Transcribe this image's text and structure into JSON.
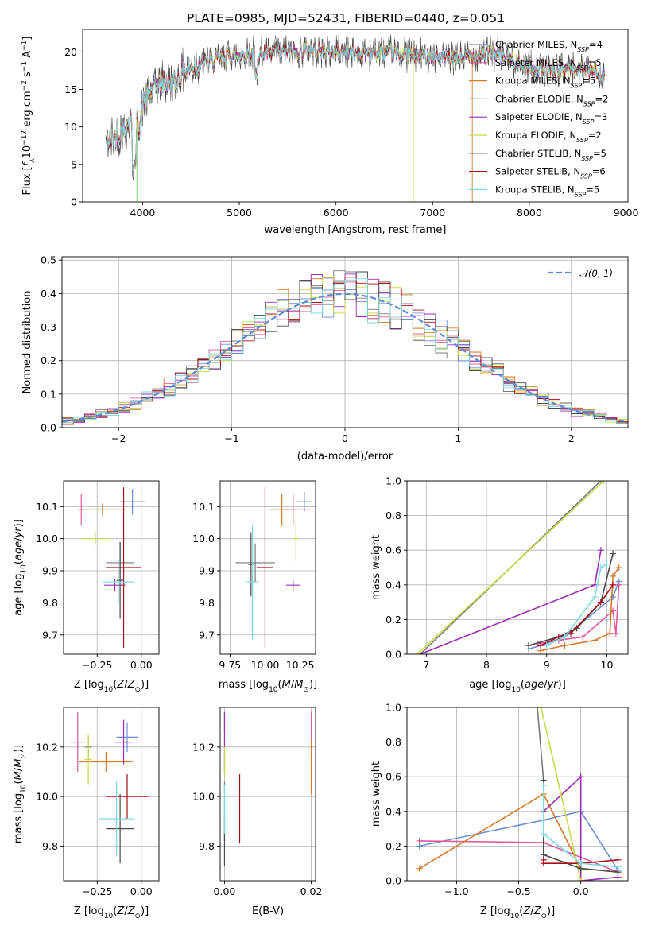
{
  "title": "PLATE=0985, MJD=52431, FIBERID=0440, z=0.051",
  "palette": [
    "#6b8fd6",
    "#e05b9a",
    "#d47a2a",
    "#7a7a7a",
    "#9b2db5",
    "#c8d94a",
    "#4a4a4a",
    "#a50f15",
    "#80d8e0"
  ],
  "models": [
    {
      "name": "Chabrier MILES",
      "nssp": "4"
    },
    {
      "name": "Salpeter MILES",
      "nssp": "5"
    },
    {
      "name": "Kroupa MILES",
      "nssp": "5"
    },
    {
      "name": "Chabrier ELODIE",
      "nssp": "2"
    },
    {
      "name": "Salpeter ELODIE",
      "nssp": "3"
    },
    {
      "name": "Kroupa ELODIE",
      "nssp": "2"
    },
    {
      "name": "Chabrier STELIB",
      "nssp": "5"
    },
    {
      "name": "Salpeter STELIB",
      "nssp": "6"
    },
    {
      "name": "Kroupa STELIB",
      "nssp": "5"
    }
  ],
  "chart_data": [
    {
      "type": "line",
      "xlabel": "wavelength [Angstrom, rest frame]",
      "ylabel": "Flux [f_λ 10^-17 erg cm^-2 s^-1 A^-1]",
      "xlim": [
        3380,
        9020
      ],
      "ylim": [
        0,
        23
      ],
      "xticks": [
        4000,
        5000,
        6000,
        7000,
        8000,
        9000
      ],
      "yticks": [
        0,
        5,
        10,
        15,
        20
      ],
      "spectrum_shape": {
        "x": [
          3620,
          3700,
          3800,
          3900,
          3950,
          4000,
          4100,
          4200,
          4300,
          4400,
          4500,
          4700,
          4900,
          5100,
          5300,
          5500,
          5700,
          6000,
          6300,
          6600,
          6800,
          7000,
          7200,
          7400,
          7600,
          7800,
          8000,
          8200,
          8400,
          8600,
          8780
        ],
        "y": [
          8,
          8.5,
          9.5,
          11,
          9.5,
          13,
          15,
          16,
          15.5,
          17,
          18,
          18.8,
          19.5,
          19.8,
          19.8,
          20,
          20.2,
          20,
          19.8,
          20,
          19.5,
          19.5,
          19,
          19.5,
          20,
          19,
          18,
          17.5,
          17.8,
          17.5,
          17
        ]
      },
      "grid": false,
      "legend_position": "upper right"
    },
    {
      "type": "histogram",
      "xlabel": "(data-model)/error",
      "ylabel": "Normed distribution",
      "xlim": [
        -2.5,
        2.5
      ],
      "ylim": [
        0,
        0.51
      ],
      "xticks": [
        -2,
        -1,
        0,
        1,
        2
      ],
      "yticks": [
        0.0,
        0.1,
        0.2,
        0.3,
        0.4,
        0.5
      ],
      "bin_width": 0.1,
      "reference_curve": "𝒩(0, 1)",
      "grid": true,
      "legend_position": "upper right"
    },
    {
      "type": "scatter",
      "xlabel": "Z [log10(Z/Z⊙)]",
      "ylabel": "age [log10(age/yr)]",
      "xlim": [
        -0.44,
        0.1
      ],
      "ylim": [
        9.64,
        10.18
      ],
      "xticks": [
        -0.25,
        0.0
      ],
      "yticks": [
        9.7,
        9.8,
        9.9,
        10.0,
        10.1
      ],
      "points": [
        {
          "x": -0.05,
          "y": 10.115,
          "xerr": 0.07,
          "yerr": 0.04
        },
        {
          "x": -0.34,
          "y": 10.09,
          "xerr": 0.02,
          "yerr": 0.05
        },
        {
          "x": -0.22,
          "y": 10.09,
          "xerr": 0.14,
          "yerr": 0.02
        },
        {
          "x": -0.12,
          "y": 9.925,
          "xerr": 0.08,
          "yerr": 0.06
        },
        {
          "x": -0.15,
          "y": 9.855,
          "xerr": 0.06,
          "yerr": 0.02
        },
        {
          "x": -0.26,
          "y": 10.0,
          "xerr": 0.08,
          "yerr": 0.02
        },
        {
          "x": -0.12,
          "y": 9.87,
          "xerr": 0.02,
          "yerr": 0.12
        },
        {
          "x": -0.1,
          "y": 9.91,
          "xerr": 0.1,
          "yerr": 0.25
        },
        {
          "x": -0.13,
          "y": 9.865,
          "xerr": 0.09,
          "yerr": 0.07
        }
      ],
      "grid": true
    },
    {
      "type": "scatter",
      "xlabel": "mass [log10(M/M⊙)]",
      "ylabel": "",
      "xlim": [
        9.68,
        10.36
      ],
      "ylim": [
        9.64,
        10.18
      ],
      "xticks": [
        9.75,
        10.0,
        10.25
      ],
      "yticks": [
        9.7,
        9.8,
        9.9,
        10.0,
        10.1
      ],
      "points": [
        {
          "x": 10.28,
          "y": 10.115,
          "xerr": 0.05,
          "yerr": 0.03
        },
        {
          "x": 10.2,
          "y": 10.09,
          "xerr": 0.12,
          "yerr": 0.05
        },
        {
          "x": 10.12,
          "y": 10.09,
          "xerr": 0.1,
          "yerr": 0.05
        },
        {
          "x": 9.93,
          "y": 9.925,
          "xerr": 0.14,
          "yerr": 0.06
        },
        {
          "x": 10.2,
          "y": 9.855,
          "xerr": 0.05,
          "yerr": 0.02
        },
        {
          "x": 10.22,
          "y": 10.0,
          "xerr": 0.02,
          "yerr": 0.07
        },
        {
          "x": 9.9,
          "y": 9.92,
          "xerr": 0.02,
          "yerr": 0.1
        },
        {
          "x": 10.0,
          "y": 9.91,
          "xerr": 0.06,
          "yerr": 0.25
        },
        {
          "x": 9.91,
          "y": 9.865,
          "xerr": 0.04,
          "yerr": 0.18
        }
      ],
      "grid": true
    },
    {
      "type": "line",
      "xlabel": "age [log10(age/yr)]",
      "ylabel": "mass weight",
      "xlim": [
        6.68,
        10.35
      ],
      "ylim": [
        0,
        1
      ],
      "xticks": [
        7,
        8,
        9,
        10
      ],
      "yticks": [
        0.0,
        0.2,
        0.4,
        0.6,
        0.8,
        1.0
      ],
      "series": [
        {
          "x": [
            8.7,
            8.9,
            9.3,
            10.1,
            10.2
          ],
          "y": [
            0.03,
            0.05,
            0.1,
            0.33,
            0.42
          ]
        },
        {
          "x": [
            8.85,
            9.2,
            9.6,
            10.1,
            10.15,
            10.2
          ],
          "y": [
            0.06,
            0.08,
            0.1,
            0.25,
            0.12,
            0.4
          ]
        },
        {
          "x": [
            8.9,
            9.3,
            9.8,
            10.05,
            10.1,
            10.2
          ],
          "y": [
            0.02,
            0.05,
            0.08,
            0.12,
            0.45,
            0.5
          ]
        },
        {
          "x": [
            6.9,
            9.9
          ],
          "y": [
            0.0,
            1.0
          ]
        },
        {
          "x": [
            6.9,
            9.8,
            9.9
          ],
          "y": [
            0.0,
            0.4,
            0.6
          ]
        },
        {
          "x": [
            6.85,
            9.95
          ],
          "y": [
            0.0,
            1.0
          ]
        },
        {
          "x": [
            8.7,
            9.2,
            9.5,
            9.9,
            10.1
          ],
          "y": [
            0.05,
            0.1,
            0.15,
            0.3,
            0.58
          ]
        },
        {
          "x": [
            8.9,
            9.2,
            9.4,
            9.9,
            10.1
          ],
          "y": [
            0.05,
            0.1,
            0.12,
            0.3,
            0.4
          ]
        },
        {
          "x": [
            9.0,
            9.3,
            9.8,
            9.9,
            10.0
          ],
          "y": [
            0.05,
            0.1,
            0.33,
            0.5,
            0.52
          ]
        }
      ],
      "grid": true
    },
    {
      "type": "scatter",
      "xlabel": "Z [log10(Z/Z⊙)]",
      "ylabel": "mass [log10(M/M⊙)]",
      "xlim": [
        -0.44,
        0.1
      ],
      "ylim": [
        9.66,
        10.36
      ],
      "xticks": [
        -0.25,
        0.0
      ],
      "yticks": [
        9.8,
        10.0,
        10.2
      ],
      "points": [
        {
          "x": -0.08,
          "y": 10.24,
          "xerr": 0.06,
          "yerr": 0.06
        },
        {
          "x": -0.36,
          "y": 10.22,
          "xerr": 0.04,
          "yerr": 0.12
        },
        {
          "x": -0.2,
          "y": 10.14,
          "xerr": 0.15,
          "yerr": 0.04
        },
        {
          "x": -0.3,
          "y": 10.2,
          "xerr": 0.02,
          "yerr": 0.04
        },
        {
          "x": -0.1,
          "y": 10.22,
          "xerr": 0.05,
          "yerr": 0.09
        },
        {
          "x": -0.3,
          "y": 10.15,
          "xerr": 0.02,
          "yerr": 0.1
        },
        {
          "x": -0.12,
          "y": 9.87,
          "xerr": 0.08,
          "yerr": 0.14
        },
        {
          "x": -0.08,
          "y": 10.0,
          "xerr": 0.12,
          "yerr": 0.09
        },
        {
          "x": -0.14,
          "y": 9.91,
          "xerr": 0.1,
          "yerr": 0.15
        }
      ],
      "grid": true
    },
    {
      "type": "scatter",
      "xlabel": "E(B-V)",
      "ylabel": "",
      "xlim": [
        -0.001,
        0.021
      ],
      "ylim": [
        9.66,
        10.36
      ],
      "xticks": [
        0.0,
        0.02
      ],
      "yticks": [
        9.8,
        10.0,
        10.2
      ],
      "points": [
        {
          "x": 0.0,
          "y": 10.3,
          "xerr": 0,
          "yerr": 0.04
        },
        {
          "x": 0.02,
          "y": 10.24,
          "xerr": 0,
          "yerr": 0.1
        },
        {
          "x": 0.02,
          "y": 10.12,
          "xerr": 0,
          "yerr": 0.11
        },
        {
          "x": 0.0,
          "y": 9.94,
          "xerr": 0,
          "yerr": 0.12
        },
        {
          "x": 0.0,
          "y": 10.22,
          "xerr": 0,
          "yerr": 0.12
        },
        {
          "x": 0.0,
          "y": 10.14,
          "xerr": 0,
          "yerr": 0.06
        },
        {
          "x": 0.0,
          "y": 9.82,
          "xerr": 0,
          "yerr": 0.1
        },
        {
          "x": 0.0035,
          "y": 9.95,
          "xerr": 0,
          "yerr": 0.14
        },
        {
          "x": 0.0,
          "y": 9.95,
          "xerr": 0,
          "yerr": 0.1
        }
      ],
      "grid": true
    },
    {
      "type": "line",
      "xlabel": "Z [log10(Z/Z⊙)]",
      "ylabel": "mass weight",
      "xlim": [
        -1.4,
        0.38
      ],
      "ylim": [
        0,
        1
      ],
      "xticks": [
        -1.0,
        -0.5,
        0.0
      ],
      "yticks": [
        0.0,
        0.2,
        0.4,
        0.6,
        0.8,
        1.0
      ],
      "series": [
        {
          "x": [
            -1.3,
            -0.3,
            0.0,
            0.3
          ],
          "y": [
            0.2,
            0.35,
            0.4,
            0.06
          ]
        },
        {
          "x": [
            -1.3,
            -0.3,
            0.3
          ],
          "y": [
            0.23,
            0.22,
            0.05
          ]
        },
        {
          "x": [
            -1.3,
            -0.3,
            0.0,
            0.3
          ],
          "y": [
            0.07,
            0.5,
            0.07,
            0.05
          ]
        },
        {
          "x": [
            -0.35,
            -0.3
          ],
          "y": [
            1.0,
            0.58
          ]
        },
        {
          "x": [
            -0.3,
            0.0,
            0.0,
            0.3
          ],
          "y": [
            0.4,
            0.6,
            0.0,
            0.02
          ]
        },
        {
          "x": [
            -0.32,
            0.0
          ],
          "y": [
            1.0,
            0.0
          ]
        },
        {
          "x": [
            -0.3,
            -0.3,
            0.0,
            0.3
          ],
          "y": [
            0.58,
            0.15,
            0.07,
            0.05
          ]
        },
        {
          "x": [
            -0.3,
            -0.3,
            0.0,
            0.3
          ],
          "y": [
            0.12,
            0.1,
            0.1,
            0.12
          ]
        },
        {
          "x": [
            -0.3,
            -0.3,
            0.0,
            0.3
          ],
          "y": [
            0.55,
            0.27,
            0.1,
            0.08
          ]
        }
      ],
      "grid": true
    }
  ]
}
